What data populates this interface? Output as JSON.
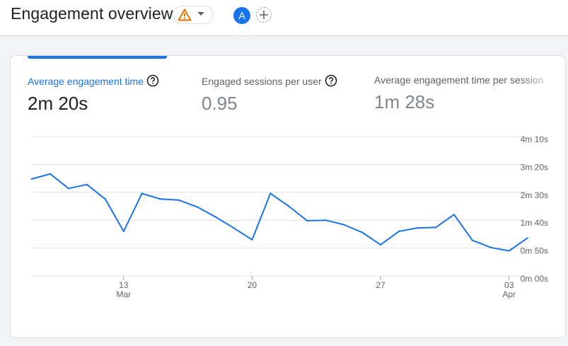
{
  "header": {
    "title": "Engagement overview",
    "avatar_letter": "A"
  },
  "metrics": [
    {
      "label": "Average engagement time",
      "value": "2m 20s"
    },
    {
      "label": "Engaged sessions per user",
      "value": "0.95"
    },
    {
      "label": "Average engagement time per session",
      "value": "1m 28s"
    }
  ],
  "colors": {
    "accent": "#1a73e8",
    "warning": "#e37400",
    "grid": "#e0e0e0"
  },
  "chart_data": {
    "type": "line",
    "title": "",
    "xlabel": "",
    "ylabel": "",
    "x_tick_labels": [
      {
        "day": "13",
        "month": "Mar"
      },
      {
        "day": "20",
        "month": ""
      },
      {
        "day": "27",
        "month": ""
      },
      {
        "day": "03",
        "month": "Apr"
      }
    ],
    "x_tick_index": [
      5,
      12,
      19,
      26
    ],
    "y_ticks": [
      0,
      50,
      100,
      150,
      200,
      250
    ],
    "y_tick_labels": [
      "0m 00s",
      "0m 50s",
      "1m 40s",
      "2m 30s",
      "3m 20s",
      "4m 10s"
    ],
    "ylim": [
      0,
      250
    ],
    "y_unit": "seconds",
    "grid": true,
    "series": [
      {
        "values": [
          174,
          183,
          157,
          164,
          138,
          80,
          148,
          138,
          136,
          124,
          106,
          86,
          65,
          148,
          125,
          99,
          100,
          92,
          78,
          56,
          80,
          86,
          87,
          110,
          64,
          51,
          45,
          68
        ]
      }
    ]
  }
}
